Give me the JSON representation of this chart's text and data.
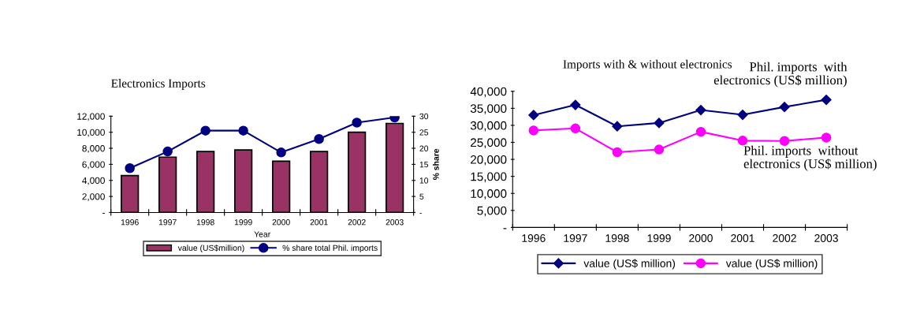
{
  "chart_data": [
    {
      "type": "bar",
      "title": "Electronics Imports",
      "xlabel": "Year",
      "y2label": "% share",
      "categories": [
        "1996",
        "1997",
        "1998",
        "1999",
        "2000",
        "2001",
        "2002",
        "2003"
      ],
      "series": [
        {
          "name": "value (US$million)",
          "type": "bar",
          "color": "#993366",
          "values": [
            4600,
            6900,
            7600,
            7800,
            6400,
            7600,
            10000,
            11100
          ]
        },
        {
          "name": "% share total Phil. imports",
          "type": "line",
          "axis": "y2",
          "marker": "circle",
          "color": "#000080",
          "values": [
            13.8,
            19,
            25.5,
            25.5,
            18.7,
            22.9,
            28,
            29.6
          ]
        }
      ],
      "ylim": [
        0,
        12000
      ],
      "yticks": [
        {
          "value": 0,
          "label": "-"
        },
        {
          "value": 2000,
          "label": "2,000"
        },
        {
          "value": 4000,
          "label": "4,000"
        },
        {
          "value": 6000,
          "label": "6,000"
        },
        {
          "value": 8000,
          "label": "8,000"
        },
        {
          "value": 10000,
          "label": "10,000"
        },
        {
          "value": 12000,
          "label": "12,000"
        }
      ],
      "y2lim": [
        0,
        30
      ],
      "y2ticks": [
        {
          "value": 0,
          "label": "-"
        },
        5,
        10,
        15,
        20,
        25,
        30
      ],
      "legend": "bottom",
      "grid": false
    },
    {
      "type": "line",
      "title": "Imports with & without electronics",
      "categories": [
        "1996",
        "1997",
        "1998",
        "1999",
        "2000",
        "2001",
        "2002",
        "2003"
      ],
      "series": [
        {
          "name": "value (US$ million)",
          "marker": "diamond",
          "color": "#000080",
          "values": [
            33000,
            36000,
            29700,
            30700,
            34500,
            33100,
            35400,
            37500
          ]
        },
        {
          "name": "value (US$ million)",
          "marker": "circle",
          "color": "#ff00ff",
          "values": [
            28500,
            29100,
            22100,
            22900,
            28100,
            25500,
            25400,
            26400
          ]
        }
      ],
      "ylim": [
        0,
        40000
      ],
      "yticks": [
        {
          "value": 0,
          "label": "-"
        },
        {
          "value": 5000,
          "label": "5,000"
        },
        {
          "value": 10000,
          "label": "10,000"
        },
        {
          "value": 15000,
          "label": "15,000"
        },
        {
          "value": 20000,
          "label": "20,000"
        },
        {
          "value": 25000,
          "label": "25,000"
        },
        {
          "value": 30000,
          "label": "30,000"
        },
        {
          "value": 35000,
          "label": "35,000"
        },
        {
          "value": 40000,
          "label": "40,000"
        }
      ],
      "annotations": [
        "Phil. imports  with\nelectronics (US$ million)",
        "Phil. imports  without\nelectronics (US$ million)"
      ],
      "legend": "bottom",
      "grid": false
    }
  ]
}
